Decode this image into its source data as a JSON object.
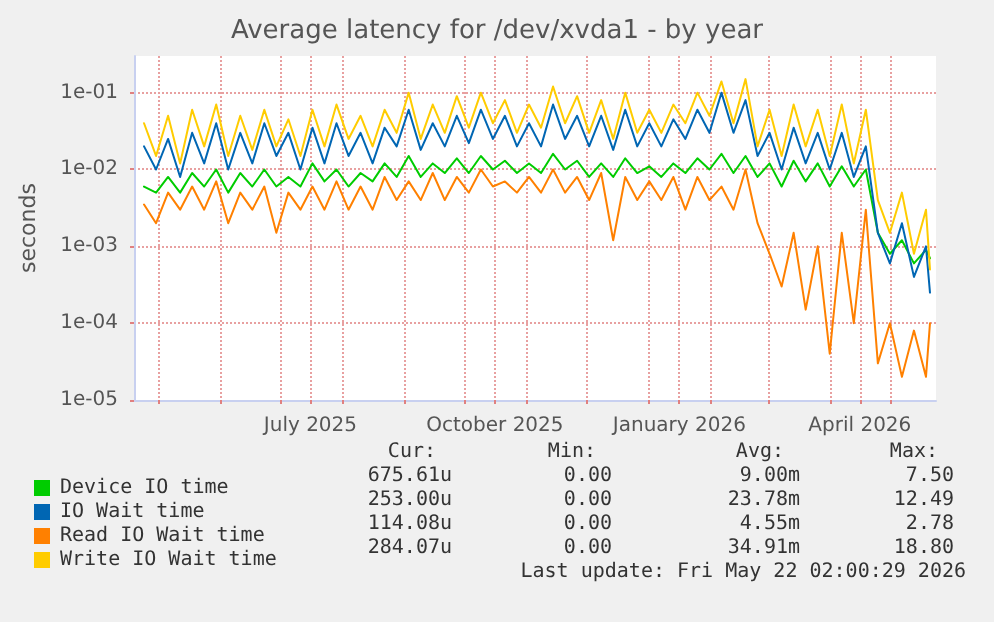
{
  "chart_data": {
    "type": "line",
    "title": "Average latency for /dev/xvda1 - by year",
    "ylabel": "seconds",
    "x": [
      "2025-04-24",
      "2025-04-30",
      "2025-05-06",
      "2025-05-12",
      "2025-05-18",
      "2025-05-24",
      "2025-05-30",
      "2025-06-05",
      "2025-06-11",
      "2025-06-17",
      "2025-06-23",
      "2025-06-29",
      "2025-07-05",
      "2025-07-11",
      "2025-07-17",
      "2025-07-23",
      "2025-07-29",
      "2025-08-04",
      "2025-08-10",
      "2025-08-16",
      "2025-08-22",
      "2025-08-28",
      "2025-09-03",
      "2025-09-09",
      "2025-09-15",
      "2025-09-21",
      "2025-09-27",
      "2025-10-03",
      "2025-10-09",
      "2025-10-15",
      "2025-10-21",
      "2025-10-27",
      "2025-11-02",
      "2025-11-08",
      "2025-11-14",
      "2025-11-20",
      "2025-11-26",
      "2025-12-02",
      "2025-12-08",
      "2025-12-14",
      "2025-12-20",
      "2025-12-26",
      "2026-01-01",
      "2026-01-07",
      "2026-01-13",
      "2026-01-19",
      "2026-01-25",
      "2026-01-31",
      "2026-02-06",
      "2026-02-12",
      "2026-02-18",
      "2026-02-24",
      "2026-03-02",
      "2026-03-08",
      "2026-03-14",
      "2026-03-20",
      "2026-03-26",
      "2026-04-01",
      "2026-04-07",
      "2026-04-13",
      "2026-04-19",
      "2026-04-25",
      "2026-05-01",
      "2026-05-07",
      "2026-05-13",
      "2026-05-19",
      "2026-05-21"
    ],
    "series": [
      {
        "name": "Device IO time",
        "color": "#00cc00",
        "values": [
          0.006,
          0.005,
          0.008,
          0.005,
          0.009,
          0.006,
          0.01,
          0.005,
          0.009,
          0.006,
          0.01,
          0.006,
          0.008,
          0.006,
          0.012,
          0.007,
          0.01,
          0.006,
          0.009,
          0.007,
          0.012,
          0.008,
          0.015,
          0.008,
          0.012,
          0.009,
          0.014,
          0.009,
          0.015,
          0.01,
          0.013,
          0.009,
          0.012,
          0.009,
          0.016,
          0.01,
          0.013,
          0.008,
          0.012,
          0.008,
          0.014,
          0.009,
          0.011,
          0.008,
          0.012,
          0.009,
          0.014,
          0.01,
          0.016,
          0.009,
          0.015,
          0.008,
          0.012,
          0.006,
          0.013,
          0.007,
          0.012,
          0.006,
          0.011,
          0.006,
          0.01,
          0.0015,
          0.0008,
          0.0012,
          0.0006,
          0.0009,
          0.0007
        ]
      },
      {
        "name": "IO Wait time",
        "color": "#0066b3",
        "values": [
          0.02,
          0.01,
          0.025,
          0.008,
          0.03,
          0.012,
          0.04,
          0.01,
          0.03,
          0.012,
          0.04,
          0.015,
          0.03,
          0.01,
          0.035,
          0.012,
          0.04,
          0.015,
          0.03,
          0.012,
          0.035,
          0.02,
          0.06,
          0.018,
          0.04,
          0.02,
          0.05,
          0.022,
          0.06,
          0.025,
          0.05,
          0.02,
          0.04,
          0.02,
          0.07,
          0.025,
          0.05,
          0.02,
          0.05,
          0.018,
          0.06,
          0.02,
          0.04,
          0.02,
          0.045,
          0.025,
          0.06,
          0.03,
          0.1,
          0.03,
          0.08,
          0.015,
          0.03,
          0.01,
          0.035,
          0.012,
          0.03,
          0.01,
          0.03,
          0.008,
          0.02,
          0.0015,
          0.0006,
          0.002,
          0.0004,
          0.001,
          0.00025
        ]
      },
      {
        "name": "Read IO Wait time",
        "color": "#ff8000",
        "values": [
          0.0035,
          0.002,
          0.005,
          0.003,
          0.006,
          0.003,
          0.007,
          0.002,
          0.005,
          0.003,
          0.006,
          0.0015,
          0.005,
          0.003,
          0.006,
          0.003,
          0.007,
          0.003,
          0.006,
          0.003,
          0.008,
          0.004,
          0.007,
          0.004,
          0.009,
          0.004,
          0.008,
          0.005,
          0.01,
          0.006,
          0.007,
          0.005,
          0.008,
          0.005,
          0.01,
          0.005,
          0.008,
          0.004,
          0.009,
          0.0012,
          0.008,
          0.004,
          0.007,
          0.004,
          0.008,
          0.003,
          0.008,
          0.004,
          0.006,
          0.003,
          0.01,
          0.002,
          0.0008,
          0.0003,
          0.0015,
          0.00015,
          0.001,
          4e-05,
          0.0015,
          0.0001,
          0.003,
          3e-05,
          0.0001,
          2e-05,
          8e-05,
          2e-05,
          0.0001
        ]
      },
      {
        "name": "Write IO Wait time",
        "color": "#ffcc00",
        "values": [
          0.04,
          0.015,
          0.05,
          0.012,
          0.06,
          0.02,
          0.07,
          0.015,
          0.05,
          0.018,
          0.06,
          0.02,
          0.045,
          0.015,
          0.06,
          0.02,
          0.07,
          0.025,
          0.05,
          0.02,
          0.06,
          0.03,
          0.1,
          0.025,
          0.07,
          0.03,
          0.09,
          0.035,
          0.1,
          0.04,
          0.08,
          0.03,
          0.07,
          0.035,
          0.12,
          0.04,
          0.09,
          0.03,
          0.08,
          0.025,
          0.1,
          0.03,
          0.06,
          0.03,
          0.07,
          0.04,
          0.1,
          0.05,
          0.14,
          0.04,
          0.15,
          0.02,
          0.06,
          0.015,
          0.07,
          0.02,
          0.06,
          0.015,
          0.07,
          0.012,
          0.06,
          0.004,
          0.0015,
          0.005,
          0.0008,
          0.003,
          0.0005
        ]
      }
    ],
    "xlim": [
      "2025-04-19",
      "2026-05-24"
    ],
    "xticks": [
      {
        "value": "2025-05-01",
        "label": null
      },
      {
        "value": "2025-06-01",
        "label": null
      },
      {
        "value": "2025-07-01",
        "label": null
      },
      {
        "value": "2025-07-16",
        "label": "July 2025"
      },
      {
        "value": "2025-08-01",
        "label": null
      },
      {
        "value": "2025-09-01",
        "label": null
      },
      {
        "value": "2025-10-01",
        "label": null
      },
      {
        "value": "2025-10-16",
        "label": "October 2025"
      },
      {
        "value": "2025-11-01",
        "label": null
      },
      {
        "value": "2025-12-01",
        "label": null
      },
      {
        "value": "2026-01-01",
        "label": null
      },
      {
        "value": "2026-01-16",
        "label": "January 2026"
      },
      {
        "value": "2026-02-01",
        "label": null
      },
      {
        "value": "2026-03-01",
        "label": null
      },
      {
        "value": "2026-04-01",
        "label": null
      },
      {
        "value": "2026-04-16",
        "label": "April 2026"
      },
      {
        "value": "2026-05-01",
        "label": null
      }
    ],
    "ylim": [
      1e-05,
      0.3
    ],
    "yticks": [
      {
        "value": 1e-05,
        "label": "1e-05"
      },
      {
        "value": 0.0001,
        "label": "1e-04"
      },
      {
        "value": 0.001,
        "label": "1e-03"
      },
      {
        "value": 0.01,
        "label": "1e-02"
      },
      {
        "value": 0.1,
        "label": "1e-01"
      }
    ],
    "log": "y",
    "grid": true,
    "legend": "bottom",
    "marker": "none",
    "line_style": "solid",
    "annotations": [
      "Cur:",
      "Min:",
      "Avg:",
      "Max:",
      "675.61u",
      "0.00",
      "9.00m",
      "7.50",
      "253.00u",
      "0.00",
      "23.78m",
      "12.49",
      "114.08u",
      "0.00",
      "4.55m",
      "2.78",
      "284.07u",
      "0.00",
      "34.91m",
      "18.80",
      "Last update: Fri May 22 02:00:29 2026"
    ]
  }
}
